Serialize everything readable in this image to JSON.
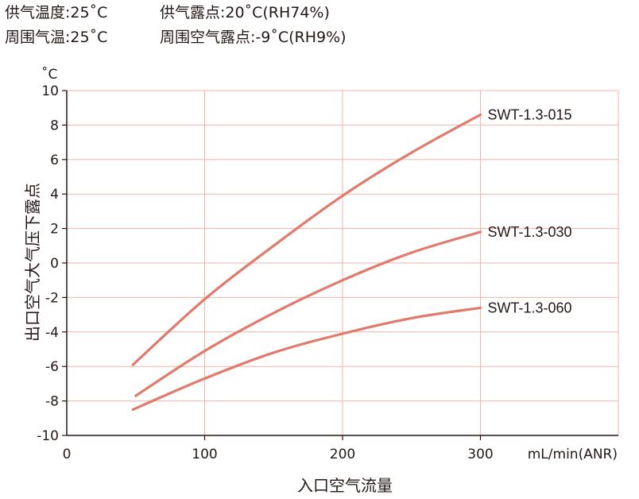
{
  "conditions": {
    "row1_left": "供气温度:25˚C",
    "row1_right": "供气露点:20˚C(RH74%)",
    "row2_left": "周围气温:25˚C",
    "row2_right": "周围空气露点:-9˚C(RH9%)"
  },
  "chart_data": {
    "type": "line",
    "ylabel": "出口空气大气压下露点",
    "y_unit": "˚C",
    "xlabel": "入口空气流量",
    "x_unit": "mL/min(ANR)",
    "xlim": [
      0,
      400
    ],
    "ylim": [
      -10,
      10
    ],
    "x_ticks": [
      "0",
      "100",
      "200",
      "300"
    ],
    "y_ticks": [
      "10",
      "8",
      "6",
      "4",
      "2",
      "0",
      "-2",
      "-4",
      "-6",
      "-8",
      "-10"
    ],
    "grid": true,
    "colors": {
      "line": "#e07b6c",
      "grid": "#f0b3a9",
      "axis": "#231815"
    },
    "series": [
      {
        "name": "SWT-1.3-015",
        "x": [
          48,
          100,
          150,
          200,
          250,
          300
        ],
        "y": [
          -5.9,
          -2.1,
          1.0,
          3.9,
          6.4,
          8.6
        ]
      },
      {
        "name": "SWT-1.3-030",
        "x": [
          50,
          100,
          150,
          200,
          250,
          300
        ],
        "y": [
          -7.7,
          -5.1,
          -2.9,
          -1.0,
          0.6,
          1.8
        ]
      },
      {
        "name": "SWT-1.3-060",
        "x": [
          48,
          100,
          150,
          200,
          250,
          300
        ],
        "y": [
          -8.5,
          -6.7,
          -5.2,
          -4.1,
          -3.2,
          -2.6
        ]
      }
    ]
  }
}
